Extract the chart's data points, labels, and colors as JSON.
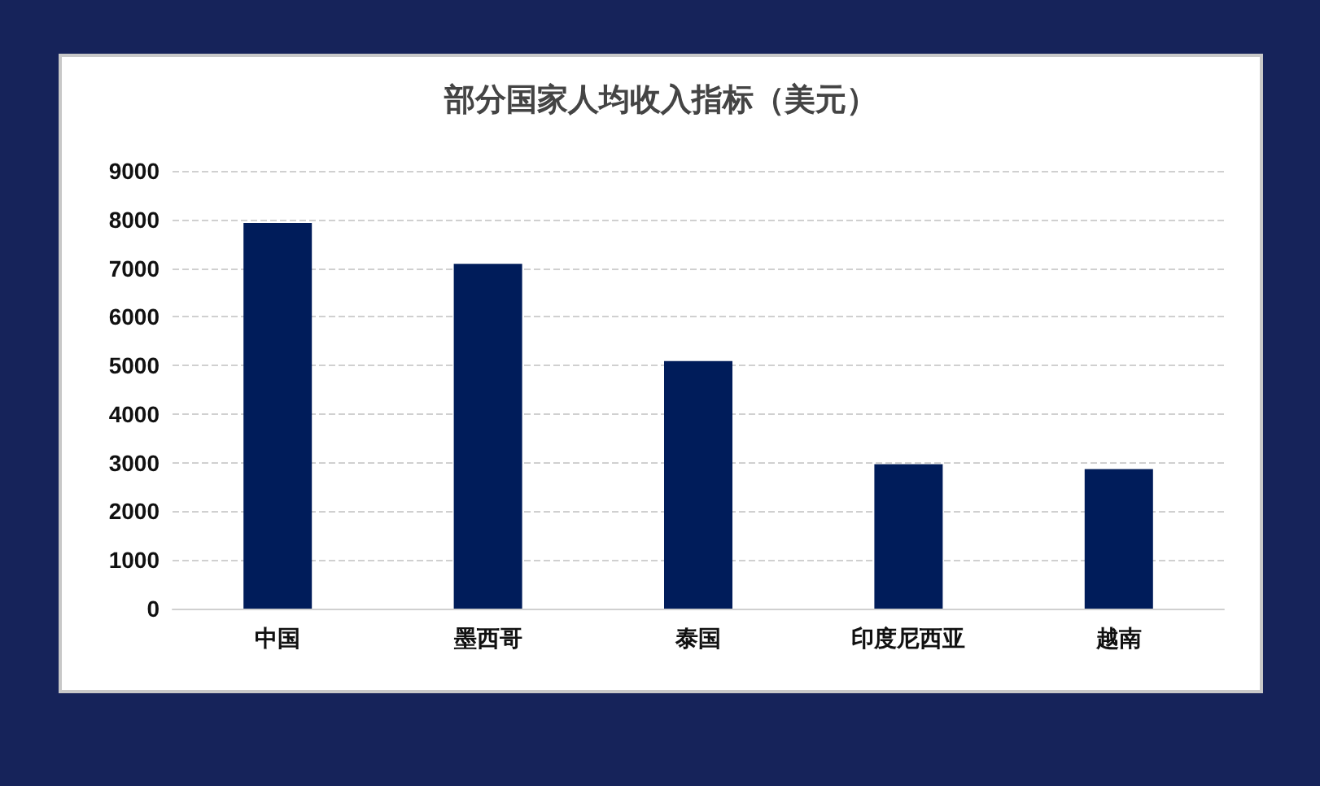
{
  "chart_data": {
    "type": "bar",
    "title": "部分国家人均收入指标（美元）",
    "categories": [
      "中国",
      "墨西哥",
      "泰国",
      "印度尼西亚",
      "越南"
    ],
    "values": [
      7930,
      7090,
      5090,
      2970,
      2870
    ],
    "color": "#001c5a",
    "ylim": [
      0,
      9000
    ],
    "yticks": [
      0,
      1000,
      2000,
      3000,
      4000,
      5000,
      6000,
      7000,
      8000,
      9000
    ],
    "grid": "y"
  }
}
